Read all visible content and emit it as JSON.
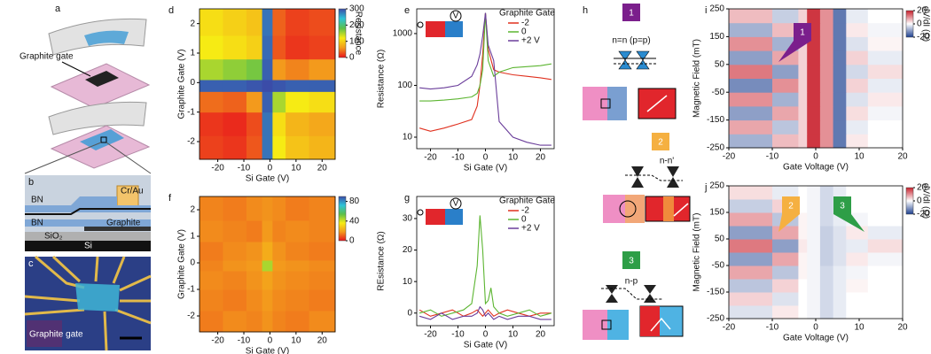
{
  "chart_data": [
    {
      "type": "heatmap",
      "label": "d",
      "xlabel": "Si Gate (V)",
      "ylabel": "Graphite Gate (V)",
      "xlim": [
        -27,
        25
      ],
      "ylim": [
        -2.6,
        2.5
      ],
      "xticks": [
        -20,
        -10,
        0,
        10,
        20
      ],
      "yticks": [
        -2,
        -1,
        0,
        1,
        2
      ],
      "xbins": [
        -27,
        -18,
        -9,
        -3,
        1,
        6,
        15,
        25
      ],
      "ybins": [
        -2.6,
        -1.8,
        -1.0,
        -0.3,
        0.1,
        0.8,
        1.6,
        2.5
      ],
      "z": [
        [
          20,
          15,
          30,
          280,
          120,
          90,
          80
        ],
        [
          15,
          10,
          25,
          280,
          110,
          80,
          70
        ],
        [
          40,
          35,
          60,
          290,
          150,
          120,
          110
        ],
        [
          290,
          290,
          295,
          300,
          295,
          290,
          290
        ],
        [
          150,
          160,
          170,
          290,
          60,
          50,
          60
        ],
        [
          120,
          110,
          100,
          285,
          30,
          15,
          20
        ],
        [
          110,
          100,
          90,
          280,
          35,
          20,
          25
        ]
      ],
      "colormap": [
        "#e8141c",
        "#f39a1c",
        "#f6eb14",
        "#5cc04a",
        "#2ec4d8",
        "#3b4ca8"
      ],
      "colorbar": {
        "label": "Resistance",
        "lim": [
          0,
          300
        ],
        "ticks": [
          0,
          100,
          200,
          300
        ]
      }
    },
    {
      "type": "line",
      "label": "e",
      "xlabel": "Si Gate (V)",
      "ylabel": "Resistance (Ω)",
      "log_y": true,
      "meter": "V",
      "xlim": [
        -25,
        25
      ],
      "ylim": [
        6,
        3000
      ],
      "xticks": [
        -20,
        -10,
        0,
        10,
        20
      ],
      "yticks": [
        10,
        100,
        1000
      ],
      "legend_title": "Graphite Gate",
      "x": [
        -24,
        -20,
        -15,
        -10,
        -5,
        -3,
        -2,
        -1,
        0,
        1,
        3,
        5,
        10,
        15,
        20,
        24
      ],
      "series": [
        {
          "name": "-2",
          "color": "#e0301e",
          "values": [
            15,
            13,
            15,
            18,
            22,
            40,
            100,
            400,
            2500,
            500,
            200,
            180,
            160,
            150,
            140,
            130
          ]
        },
        {
          "name": "0",
          "color": "#5cb531",
          "values": [
            50,
            50,
            52,
            55,
            60,
            70,
            100,
            200,
            2500,
            300,
            150,
            180,
            220,
            230,
            240,
            260
          ]
        },
        {
          "name": "+2 V",
          "color": "#6a3d9a",
          "values": [
            90,
            85,
            90,
            100,
            150,
            250,
            400,
            900,
            2500,
            600,
            300,
            20,
            10,
            8,
            7,
            7
          ]
        }
      ]
    },
    {
      "type": "heatmap",
      "label": "f",
      "xlabel": "Si Gate (V)",
      "ylabel": "Graphite Gate (V)",
      "xlim": [
        -27,
        25
      ],
      "ylim": [
        -2.6,
        2.5
      ],
      "xticks": [
        -20,
        -10,
        0,
        10,
        20
      ],
      "yticks": [
        -2,
        -1,
        0,
        1,
        2
      ],
      "xbins": [
        -27,
        -18,
        -9,
        -3,
        1,
        6,
        15,
        25
      ],
      "ybins": [
        -2.6,
        -1.8,
        -1.0,
        -0.3,
        0.1,
        0.8,
        1.6,
        2.5
      ],
      "z": [
        [
          14,
          16,
          15,
          17,
          15,
          14,
          16
        ],
        [
          15,
          14,
          16,
          18,
          16,
          15,
          14
        ],
        [
          16,
          15,
          17,
          20,
          17,
          16,
          15
        ],
        [
          15,
          17,
          18,
          45,
          18,
          17,
          16
        ],
        [
          14,
          16,
          17,
          22,
          17,
          15,
          14
        ],
        [
          16,
          15,
          14,
          18,
          15,
          16,
          15
        ],
        [
          15,
          14,
          16,
          17,
          16,
          14,
          15
        ]
      ],
      "colormap": [
        "#e8141c",
        "#f39a1c",
        "#f6eb14",
        "#5cc04a",
        "#2ec4d8",
        "#3b4ca8"
      ],
      "colorbar": {
        "lim": [
          0,
          90
        ],
        "ticks": [
          0,
          40,
          80
        ]
      }
    },
    {
      "type": "line",
      "label": "g",
      "xlabel": "Si Gate (V)",
      "ylabel": "REsistance (Ω)",
      "meter": "V",
      "xlim": [
        -25,
        25
      ],
      "ylim": [
        -4,
        37
      ],
      "xticks": [
        -20,
        -10,
        0,
        10,
        20
      ],
      "yticks": [
        0,
        10,
        20,
        30
      ],
      "legend_title": "Graphite Gate",
      "x": [
        -24,
        -20,
        -16,
        -12,
        -8,
        -5,
        -3,
        -2,
        -1,
        0,
        1,
        2,
        3,
        5,
        8,
        12,
        16,
        20,
        24
      ],
      "series": [
        {
          "name": "-2",
          "color": "#e0301e",
          "values": [
            1,
            -1,
            0,
            1,
            -1,
            0,
            1,
            0,
            -1,
            0,
            1,
            0,
            -1,
            0,
            1,
            0,
            -1,
            0,
            0
          ]
        },
        {
          "name": "0",
          "color": "#5cb531",
          "values": [
            0,
            1,
            -1,
            0,
            1,
            3,
            15,
            31,
            20,
            3,
            4,
            8,
            2,
            0,
            -1,
            0,
            1,
            -1,
            0
          ]
        },
        {
          "name": "+2 V",
          "color": "#6a3d9a",
          "values": [
            -1,
            -2,
            0,
            -2,
            -1,
            -1,
            0,
            2,
            1,
            -1,
            0,
            -1,
            -2,
            -1,
            -2,
            -1,
            -1,
            -2,
            -2
          ]
        }
      ]
    },
    {
      "type": "heatmap",
      "label": "i",
      "xlabel": "Gate Voltage (V)",
      "ylabel": "Magnetic Field (mT)",
      "xlim": [
        -20,
        20
      ],
      "ylim": [
        -250,
        250
      ],
      "xticks": [
        -20,
        -10,
        0,
        10,
        20
      ],
      "yticks": [
        -250,
        -150,
        -50,
        50,
        150,
        250
      ],
      "xbins": [
        -20,
        -10,
        -4,
        -2,
        1,
        4,
        7,
        12,
        20
      ],
      "ybins": [
        -250,
        -200,
        -150,
        -100,
        -50,
        0,
        50,
        100,
        150,
        200,
        250
      ],
      "z": [
        [
          -8,
          6,
          4,
          18,
          10,
          -14,
          2,
          0
        ],
        [
          8,
          -6,
          4,
          18,
          10,
          -14,
          -2,
          0
        ],
        [
          -10,
          8,
          4,
          18,
          10,
          -14,
          3,
          -1
        ],
        [
          10,
          -8,
          4,
          18,
          10,
          -14,
          -3,
          2
        ],
        [
          -12,
          10,
          4,
          18,
          10,
          -14,
          4,
          -2
        ],
        [
          12,
          -10,
          4,
          18,
          10,
          -14,
          -4,
          3
        ],
        [
          -10,
          8,
          4,
          18,
          10,
          -14,
          4,
          -2
        ],
        [
          10,
          -8,
          4,
          18,
          10,
          -14,
          -3,
          1
        ],
        [
          -8,
          6,
          4,
          18,
          10,
          -14,
          2,
          -1
        ],
        [
          6,
          -5,
          4,
          18,
          10,
          -14,
          -2,
          0
        ]
      ],
      "colormap": [
        "#1c3f8f",
        "#ffffff",
        "#c8202c"
      ],
      "colorbar": {
        "label": "dV/dI (Ω)",
        "lim": [
          -20,
          20
        ],
        "ticks": [
          -20,
          0,
          20
        ]
      },
      "annotations": [
        {
          "text": "1",
          "color": "#7b1f8c"
        }
      ]
    },
    {
      "type": "heatmap",
      "label": "j",
      "xlabel": "Gate Voltage (V)",
      "ylabel": "Magnetic Field (mT)",
      "xlim": [
        -20,
        20
      ],
      "ylim": [
        -250,
        250
      ],
      "xticks": [
        -20,
        -10,
        0,
        10,
        20
      ],
      "yticks": [
        -250,
        -150,
        -50,
        50,
        150,
        250
      ],
      "xbins": [
        -20,
        -10,
        -4,
        -2,
        1,
        4,
        7,
        12,
        20
      ],
      "ybins": [
        -250,
        -200,
        -150,
        -100,
        -50,
        0,
        50,
        100,
        150,
        200,
        250
      ],
      "z": [
        [
          -3,
          2,
          0,
          -1,
          -4,
          -2,
          0,
          0
        ],
        [
          4,
          -3,
          0,
          -1,
          -4,
          -2,
          0,
          0
        ],
        [
          -6,
          4,
          0,
          -1,
          -4,
          -2,
          1,
          0
        ],
        [
          8,
          -6,
          1,
          -1,
          -4,
          -2,
          -1,
          0
        ],
        [
          -10,
          8,
          1,
          -1,
          -5,
          -3,
          2,
          -1
        ],
        [
          12,
          -10,
          2,
          -1,
          -5,
          -3,
          -2,
          3
        ],
        [
          -10,
          8,
          1,
          -1,
          -5,
          -3,
          2,
          -2
        ],
        [
          8,
          -6,
          1,
          -1,
          -4,
          -2,
          -1,
          0
        ],
        [
          -5,
          4,
          0,
          -1,
          -4,
          -2,
          0,
          0
        ],
        [
          3,
          -2,
          0,
          -1,
          -4,
          -2,
          0,
          0
        ]
      ],
      "colormap": [
        "#1c3f8f",
        "#ffffff",
        "#c8202c"
      ],
      "colorbar": {
        "label": "dV/dI (Ω)",
        "lim": [
          -20,
          20
        ],
        "ticks": [
          -20,
          0,
          20
        ]
      },
      "annotations": [
        {
          "text": "2",
          "color": "#f5b041"
        },
        {
          "text": "3",
          "color": "#2e9e47"
        }
      ]
    }
  ],
  "schematic": {
    "a": {
      "label": "a",
      "graphite_gate": "Graphite gate"
    },
    "b": {
      "label": "b",
      "layers": [
        "BN",
        "Cr/Au",
        "BN",
        "Graphite",
        "SiO₂",
        "Si"
      ]
    },
    "c": {
      "label": "c",
      "graphite_gate": "Graphite gate"
    },
    "h": {
      "label": "h",
      "regimes": [
        {
          "number": "1",
          "text": "n=n (p=p)"
        },
        {
          "number": "2",
          "text": "n-n'"
        },
        {
          "number": "3",
          "text": "n-p"
        }
      ]
    }
  }
}
